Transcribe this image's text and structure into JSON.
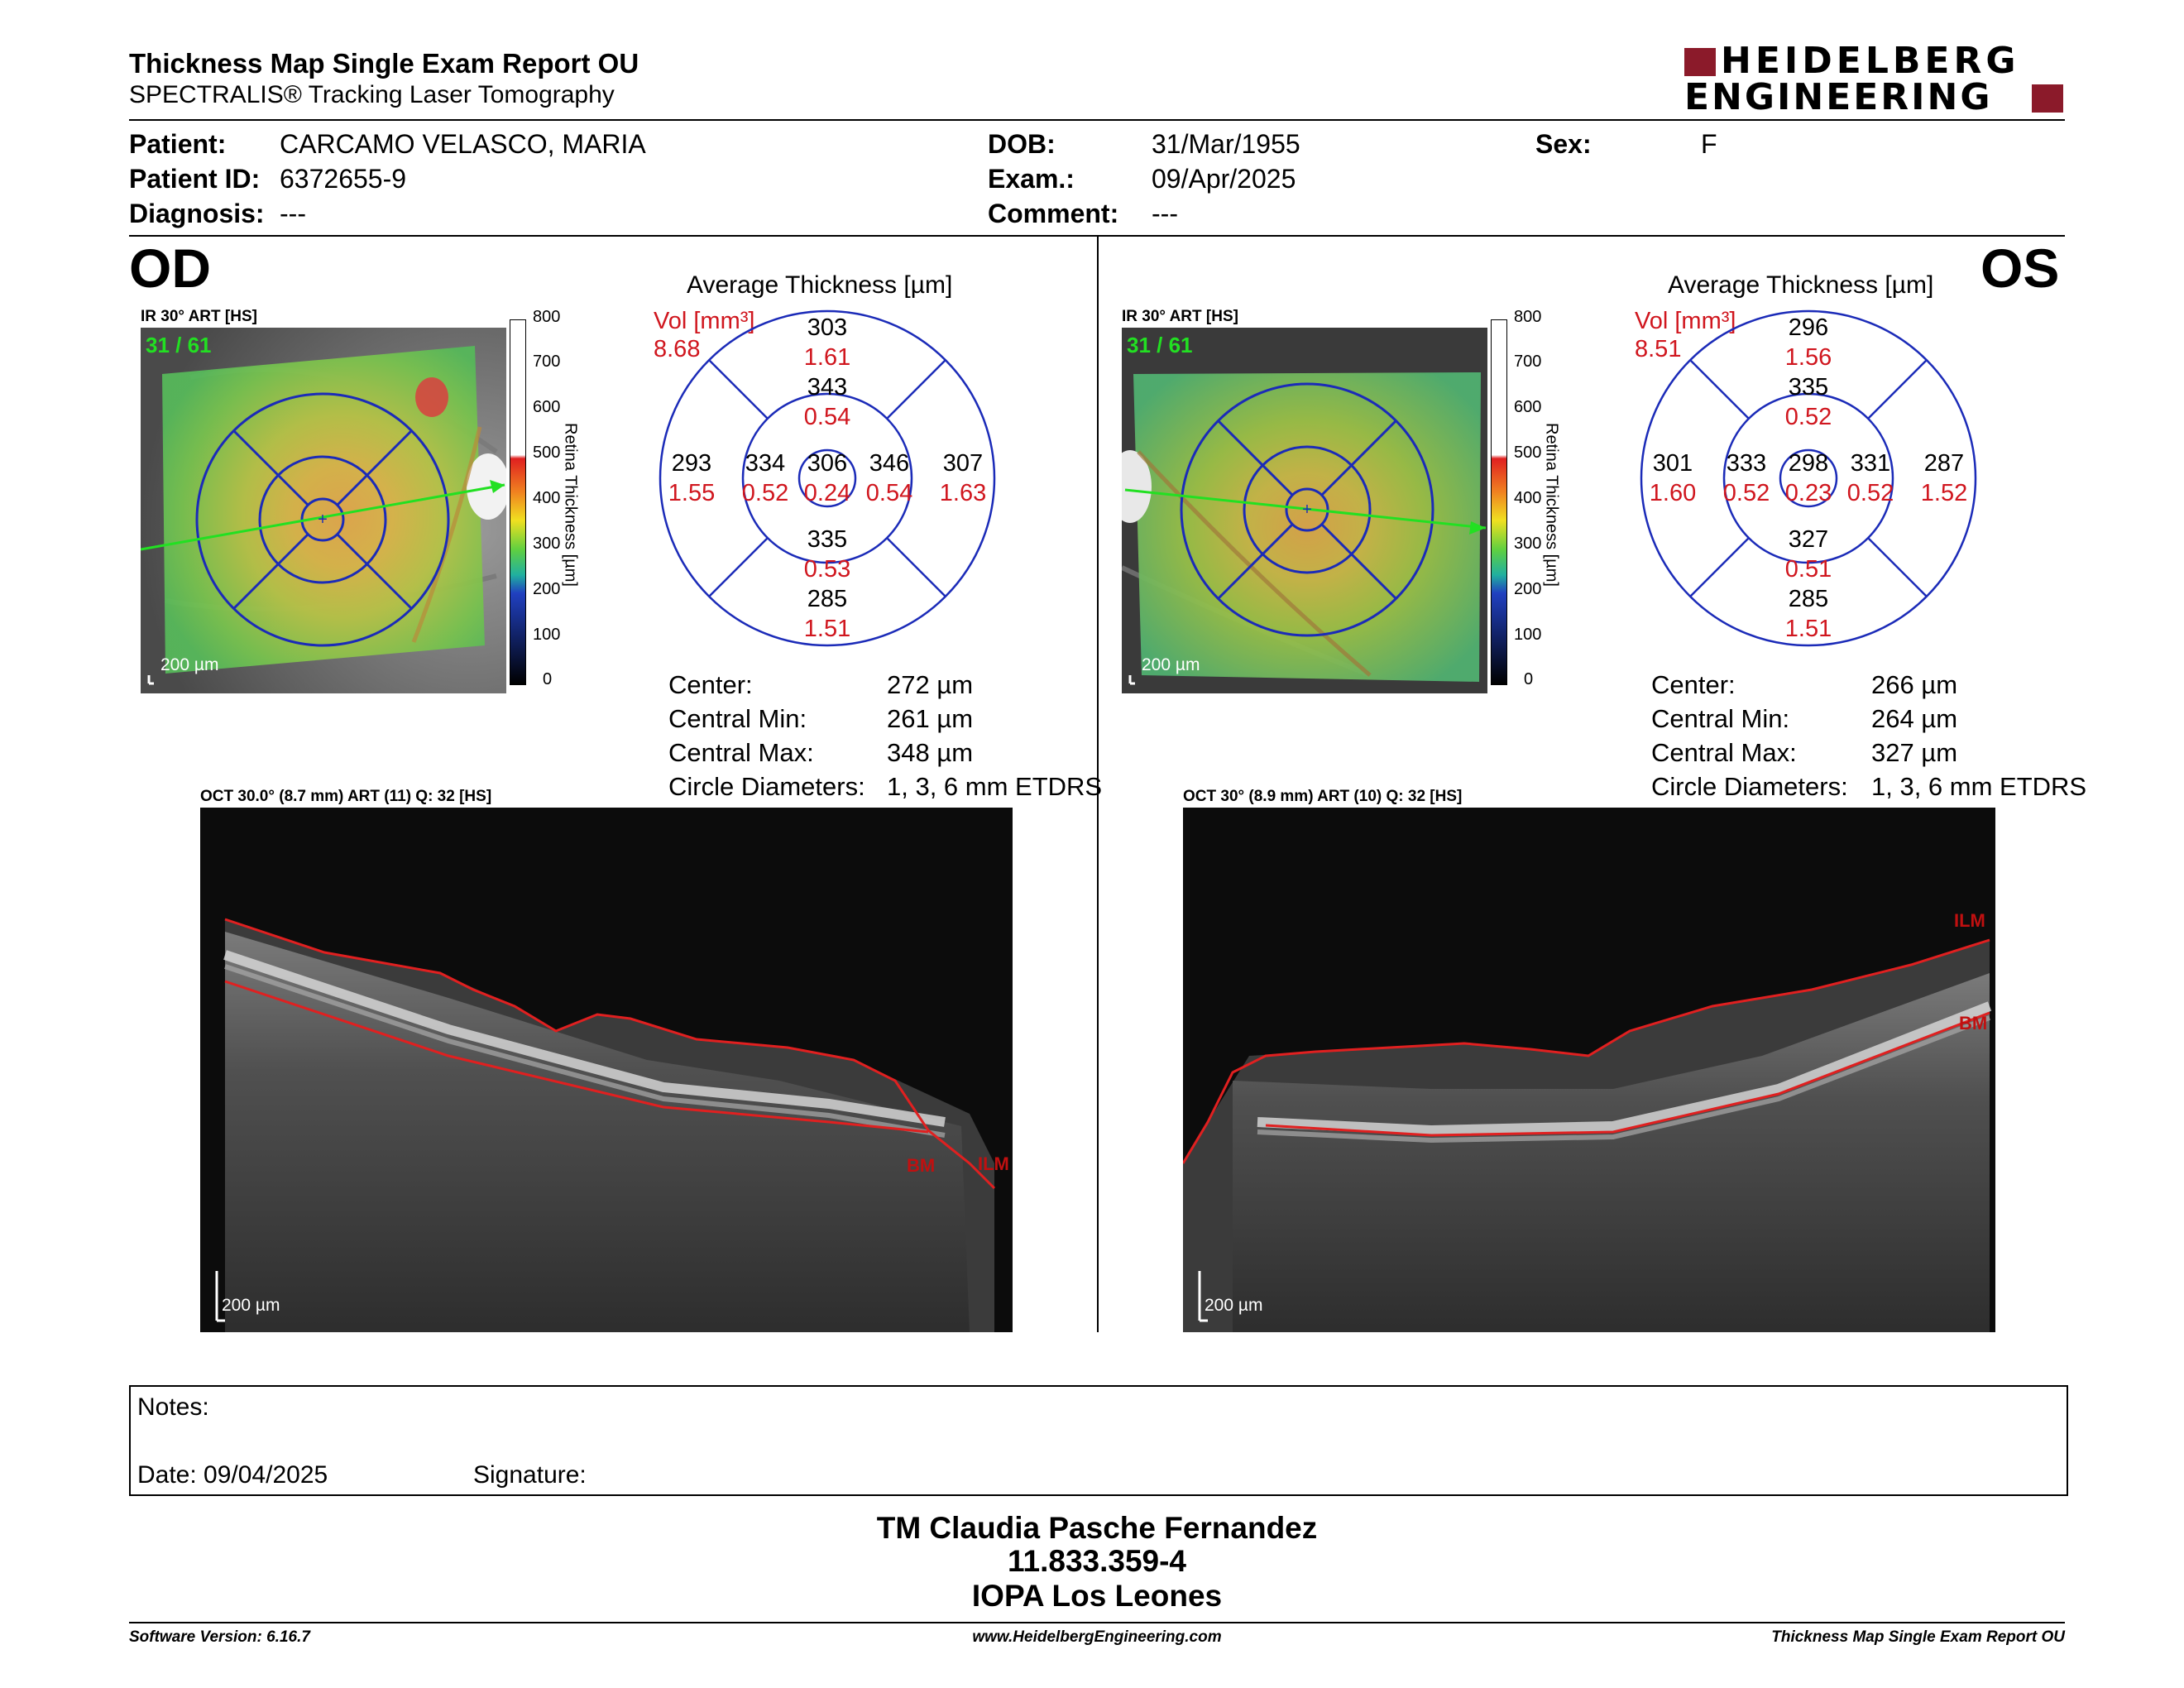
{
  "header": {
    "title": "Thickness Map Single Exam Report OU",
    "subtitle": "SPECTRALIS® Tracking Laser Tomography",
    "logo_line1": "HEIDELBERG",
    "logo_line2": "ENGINEERING",
    "logo_color": "#8b1a2a"
  },
  "patient": {
    "patient_label": "Patient:",
    "patient_value": "CARCAMO VELASCO, MARIA",
    "id_label": "Patient ID:",
    "id_value": "6372655-9",
    "diagnosis_label": "Diagnosis:",
    "diagnosis_value": "---",
    "dob_label": "DOB:",
    "dob_value": "31/Mar/1955",
    "exam_label": "Exam.:",
    "exam_value": "09/Apr/2025",
    "comment_label": "Comment:",
    "comment_value": "---",
    "sex_label": "Sex:",
    "sex_value": "F"
  },
  "common": {
    "avg_title": "Average Thickness [µm]",
    "vol_label": "Vol [mm³]",
    "ir_label": "IR 30° ART [HS]",
    "scale_bar": "200 µm",
    "colorbar_title": "Retina Thickness [µm]",
    "colorbar_ticks": [
      "800",
      "700",
      "600",
      "500",
      "400",
      "300",
      "200",
      "100",
      "0"
    ],
    "stat_center": "Center:",
    "stat_min": "Central Min:",
    "stat_max": "Central Max:",
    "stat_diam": "Circle Diameters:",
    "ilm": "ILM",
    "bm": "BM"
  },
  "od": {
    "eye": "OD",
    "frame": "31 / 61",
    "vol_total": "8.68",
    "grid": {
      "center_t": "306",
      "center_v": "0.24",
      "inner_top_t": "343",
      "inner_top_v": "0.54",
      "inner_bottom_t": "335",
      "inner_bottom_v": "0.53",
      "inner_left_t": "334",
      "inner_left_v": "0.52",
      "inner_right_t": "346",
      "inner_right_v": "0.54",
      "outer_top_t": "303",
      "outer_top_v": "1.61",
      "outer_bottom_t": "285",
      "outer_bottom_v": "1.51",
      "outer_left_t": "293",
      "outer_left_v": "1.55",
      "outer_right_t": "307",
      "outer_right_v": "1.63"
    },
    "center_val": "272 µm",
    "min_val": "261 µm",
    "max_val": "348 µm",
    "diam_val": "1, 3, 6 mm ETDRS",
    "oct_label": "OCT 30.0° (8.7 mm) ART (11) Q: 32 [HS]"
  },
  "os": {
    "eye": "OS",
    "frame": "31 / 61",
    "vol_total": "8.51",
    "grid": {
      "center_t": "298",
      "center_v": "0.23",
      "inner_top_t": "335",
      "inner_top_v": "0.52",
      "inner_bottom_t": "327",
      "inner_bottom_v": "0.51",
      "inner_left_t": "333",
      "inner_left_v": "0.52",
      "inner_right_t": "331",
      "inner_right_v": "0.52",
      "outer_top_t": "296",
      "outer_top_v": "1.56",
      "outer_bottom_t": "285",
      "outer_bottom_v": "1.51",
      "outer_left_t": "301",
      "outer_left_v": "1.60",
      "outer_right_t": "287",
      "outer_right_v": "1.52"
    },
    "center_val": "266 µm",
    "min_val": "264 µm",
    "max_val": "327 µm",
    "diam_val": "1, 3, 6 mm ETDRS",
    "oct_label": "OCT 30° (8.9 mm) ART (10) Q: 32 [HS]"
  },
  "notes": {
    "notes_label": "Notes:",
    "date_label": "Date: 09/04/2025",
    "signature_label": "Signature:"
  },
  "signoff": {
    "name": "TM Claudia Pasche Fernandez",
    "rut": "11.833.359-4",
    "place": "IOPA Los Leones"
  },
  "footer": {
    "version": "Software Version: 6.16.7",
    "url": "www.HeidelbergEngineering.com",
    "report": "Thickness Map Single Exam Report OU"
  }
}
